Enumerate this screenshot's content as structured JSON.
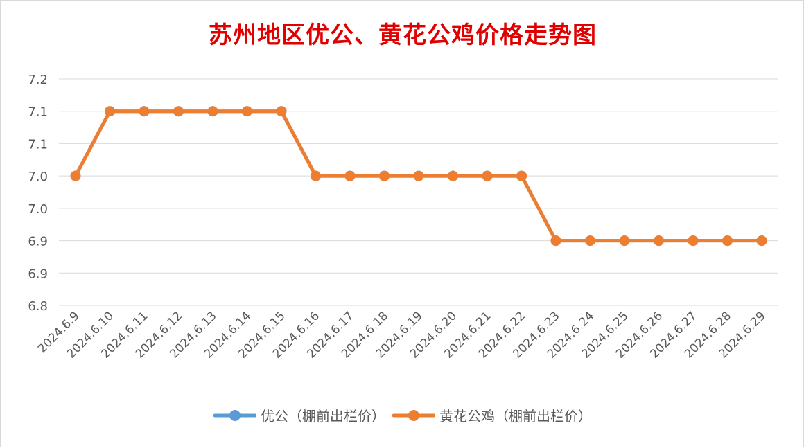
{
  "chart_data": {
    "type": "line",
    "title": "苏州地区优公、黄花公鸡价格走势图",
    "categories": [
      "2024.6.9",
      "2024.6.10",
      "2024.6.11",
      "2024.6.12",
      "2024.6.13",
      "2024.6.14",
      "2024.6.15",
      "2024.6.16",
      "2024.6.17",
      "2024.6.18",
      "2024.6.19",
      "2024.6.20",
      "2024.6.21",
      "2024.6.22",
      "2024.6.23",
      "2024.6.24",
      "2024.6.25",
      "2024.6.26",
      "2024.6.27",
      "2024.6.28",
      "2024.6.29"
    ],
    "y_ticks": [
      "7.2",
      "7.1",
      "7.1",
      "7.0",
      "7.0",
      "6.9",
      "6.9",
      "6.8"
    ],
    "ylim": [
      6.8,
      7.15
    ],
    "grid": true,
    "legend_position": "bottom",
    "series": [
      {
        "name": "优公（棚前出栏价）",
        "color": "#5b9bd5",
        "values": [
          7.0,
          7.1,
          7.1,
          7.1,
          7.1,
          7.1,
          7.1,
          7.0,
          7.0,
          7.0,
          7.0,
          7.0,
          7.0,
          7.0,
          6.9,
          6.9,
          6.9,
          6.9,
          6.9,
          6.9,
          6.9
        ]
      },
      {
        "name": "黄花公鸡（棚前出栏价）",
        "color": "#ed7d31",
        "values": [
          7.0,
          7.1,
          7.1,
          7.1,
          7.1,
          7.1,
          7.1,
          7.0,
          7.0,
          7.0,
          7.0,
          7.0,
          7.0,
          7.0,
          6.9,
          6.9,
          6.9,
          6.9,
          6.9,
          6.9,
          6.9
        ]
      }
    ]
  }
}
